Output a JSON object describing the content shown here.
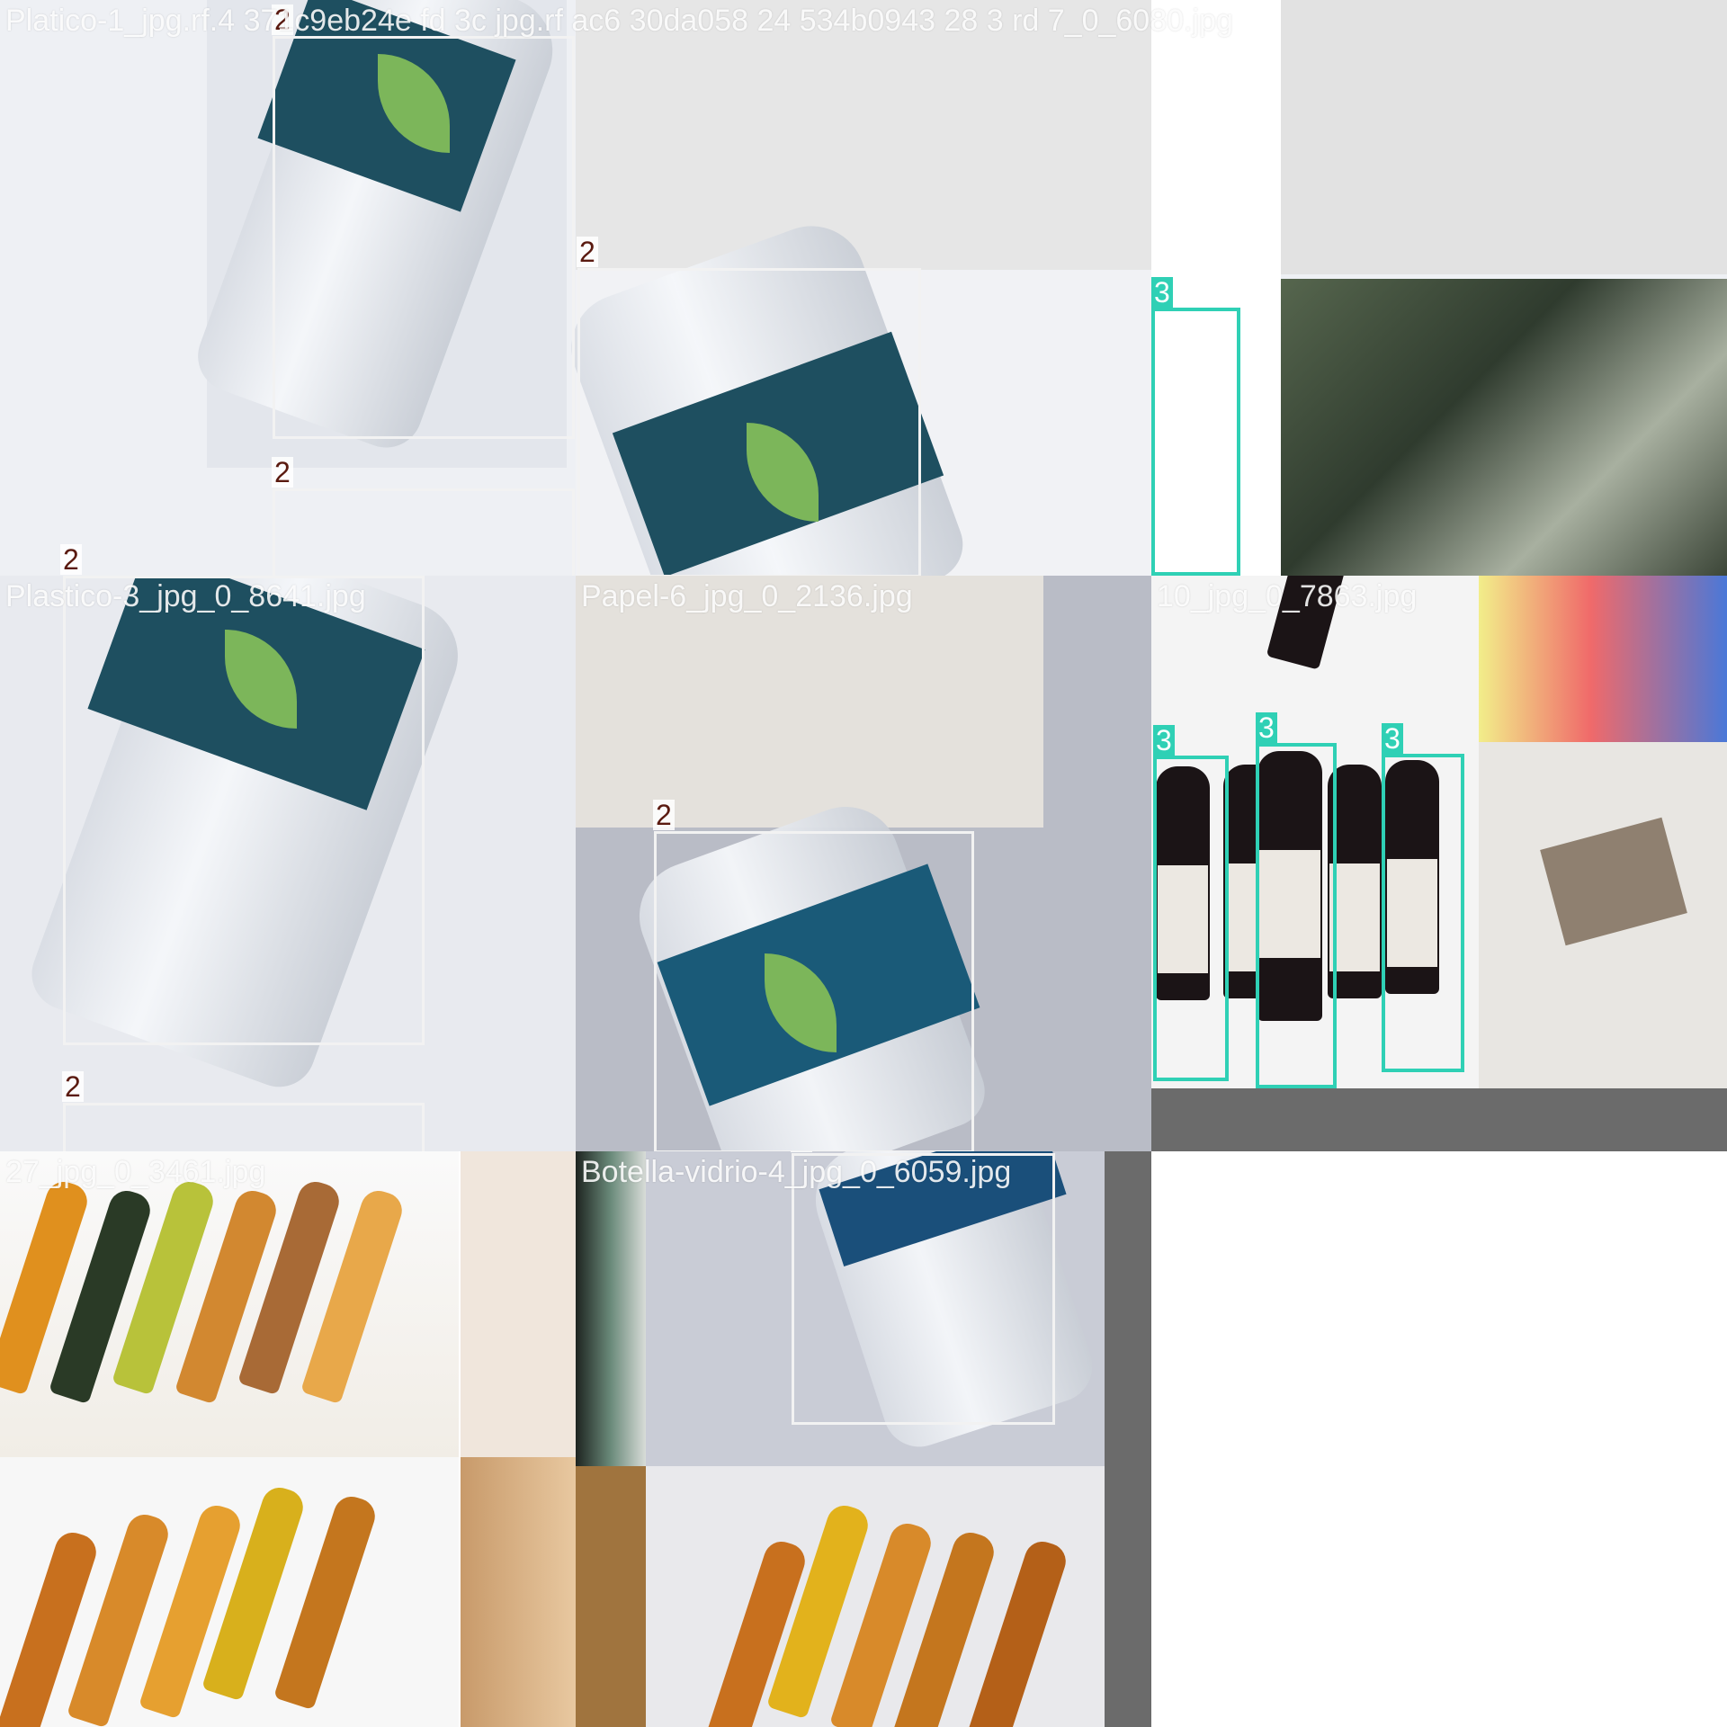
{
  "mosaic": {
    "colors": {
      "class_2_box": "#f2f2f2",
      "class_3_box": "#2fd0b5",
      "class_2_tag_text": "#5a1a10"
    },
    "tiles": [
      {
        "label": "Platico-1_jpg.rf.4 371c9eb24e  fd  3c  jpg.rf ac6 30da058 24 534b0943 28 3 rd  7_0_6080.jpg",
        "boxes": [
          {
            "cls": "2"
          },
          {
            "cls": "2"
          },
          {
            "cls": "2"
          },
          {
            "cls": "2"
          },
          {
            "cls": "3"
          }
        ]
      },
      {
        "label": "Plastico-3_jpg_0_8641.jpg",
        "boxes": [
          {
            "cls": "2"
          },
          {
            "cls": "2"
          }
        ]
      },
      {
        "label": "Papel-6_jpg_0_2136.jpg",
        "boxes": [
          {
            "cls": "2"
          }
        ]
      },
      {
        "label": "10_jpg_0_7863.jpg",
        "boxes": [
          {
            "cls": "3"
          },
          {
            "cls": "3"
          },
          {
            "cls": "3"
          }
        ]
      },
      {
        "label": "27_jpg_0_3461.jpg",
        "boxes": []
      },
      {
        "label": "Botella-vidrio-4_jpg_0_6059.jpg",
        "boxes": [
          {
            "cls": "2"
          }
        ]
      }
    ]
  }
}
